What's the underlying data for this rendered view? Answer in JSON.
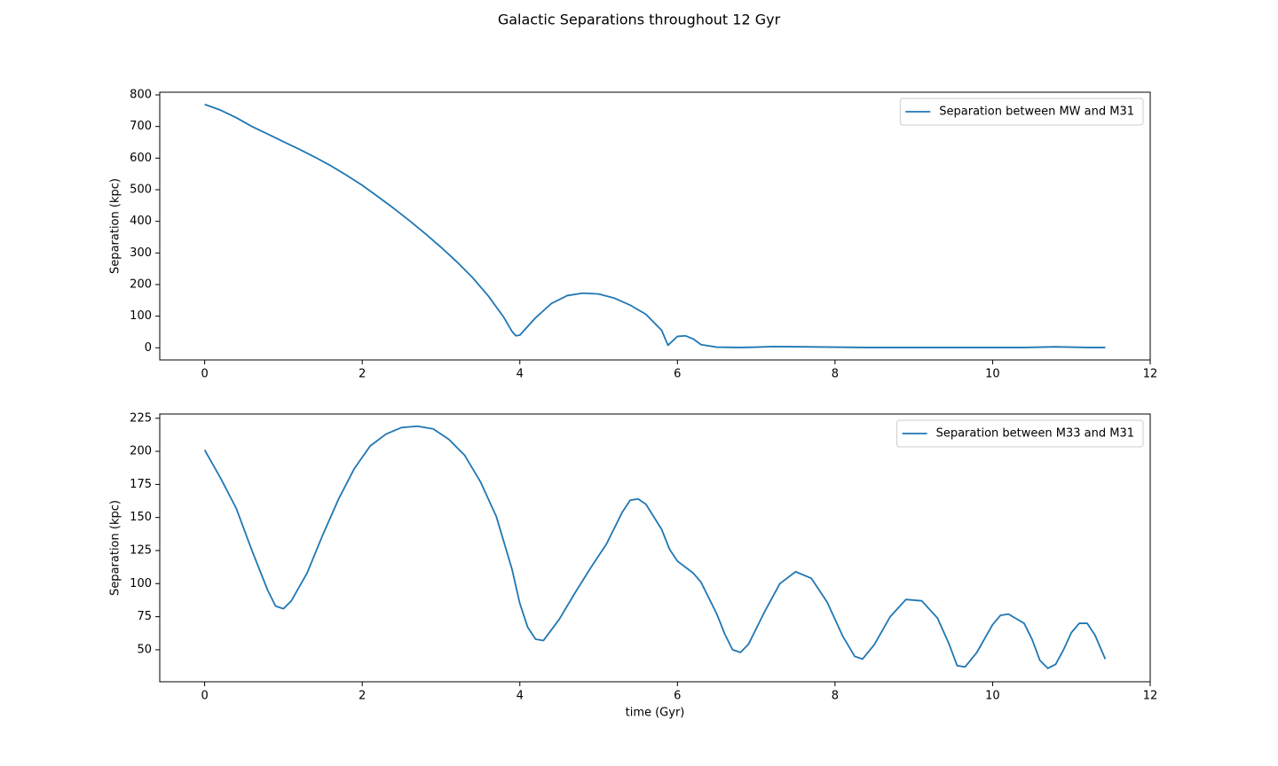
{
  "title": "Galactic Separations throughout 12 Gyr",
  "chart_data": [
    {
      "type": "line",
      "ylabel": "Separation (kpc)",
      "x": [
        0,
        0.2,
        0.4,
        0.6,
        0.8,
        1.0,
        1.2,
        1.4,
        1.6,
        1.8,
        2.0,
        2.2,
        2.4,
        2.6,
        2.8,
        3.0,
        3.2,
        3.4,
        3.6,
        3.8,
        3.9,
        3.95,
        4.0,
        4.2,
        4.4,
        4.6,
        4.8,
        5.0,
        5.2,
        5.4,
        5.6,
        5.8,
        5.88,
        6.0,
        6.1,
        6.2,
        6.3,
        6.5,
        6.8,
        7.0,
        7.2,
        7.6,
        8.0,
        8.4,
        8.8,
        9.2,
        9.6,
        10.0,
        10.4,
        10.8,
        11.2,
        11.43
      ],
      "series": [
        {
          "name": "Separation between MW and M31",
          "color": "#1f77b4",
          "values": [
            770,
            752,
            728,
            700,
            676,
            652,
            628,
            603,
            576,
            546,
            514,
            478,
            441,
            402,
            361,
            318,
            272,
            222,
            164,
            95,
            52,
            38,
            40,
            95,
            140,
            165,
            173,
            170,
            157,
            135,
            106,
            55,
            8,
            36,
            38,
            28,
            10,
            2,
            1,
            2,
            4,
            3,
            2,
            1,
            1,
            1,
            1,
            1,
            1,
            3,
            1,
            1
          ]
        }
      ],
      "xlim": [
        -0.57,
        12.0
      ],
      "xticks": [
        0,
        2,
        4,
        6,
        8,
        10,
        12
      ],
      "ylim": [
        -38.5,
        808.5
      ],
      "yticks": [
        0,
        100,
        200,
        300,
        400,
        500,
        600,
        700,
        800
      ],
      "legend": "upper right",
      "grid": false
    },
    {
      "type": "line",
      "xlabel": "time (Gyr)",
      "ylabel": "Separation (kpc)",
      "x": [
        0,
        0.2,
        0.4,
        0.6,
        0.8,
        0.9,
        1.0,
        1.1,
        1.3,
        1.5,
        1.7,
        1.9,
        2.1,
        2.3,
        2.5,
        2.7,
        2.9,
        3.1,
        3.3,
        3.5,
        3.7,
        3.9,
        4.0,
        4.1,
        4.2,
        4.3,
        4.5,
        4.7,
        4.9,
        5.1,
        5.3,
        5.4,
        5.5,
        5.6,
        5.8,
        5.9,
        6.0,
        6.2,
        6.3,
        6.5,
        6.6,
        6.7,
        6.8,
        6.9,
        7.1,
        7.3,
        7.5,
        7.7,
        7.9,
        8.1,
        8.25,
        8.35,
        8.5,
        8.7,
        8.9,
        9.1,
        9.3,
        9.45,
        9.55,
        9.65,
        9.8,
        10.0,
        10.1,
        10.2,
        10.4,
        10.5,
        10.6,
        10.7,
        10.8,
        10.9,
        11.0,
        11.1,
        11.2,
        11.3,
        11.43
      ],
      "series": [
        {
          "name": "Separation between M33 and M31",
          "color": "#1f77b4",
          "values": [
            201,
            180,
            157,
            125,
            95,
            83,
            81,
            87,
            108,
            137,
            164,
            187,
            204,
            213,
            218,
            219,
            217,
            209,
            197,
            177,
            151,
            111,
            85,
            67,
            58,
            57,
            73,
            93,
            112,
            130,
            154,
            163,
            164,
            160,
            141,
            126,
            117,
            108,
            101,
            77,
            62,
            50,
            48,
            54,
            78,
            100,
            109,
            104,
            86,
            60,
            45,
            43,
            54,
            75,
            88,
            87,
            74,
            54,
            38,
            37,
            48,
            69,
            76,
            77,
            70,
            58,
            42,
            36,
            39,
            50,
            63,
            70,
            70,
            61,
            43
          ]
        }
      ],
      "xlim": [
        -0.57,
        12.0
      ],
      "xticks": [
        0,
        2,
        4,
        6,
        8,
        10,
        12
      ],
      "ylim": [
        25.8,
        228.2
      ],
      "yticks": [
        50,
        75,
        100,
        125,
        150,
        175,
        200,
        225
      ],
      "legend": "upper right",
      "grid": false
    }
  ]
}
